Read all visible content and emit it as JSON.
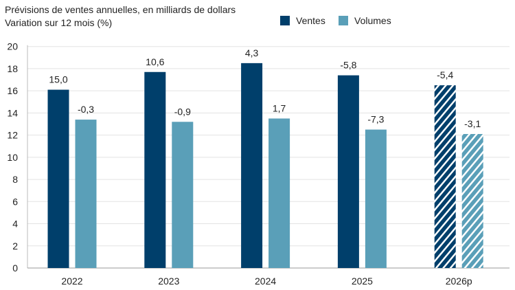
{
  "chart_data": {
    "type": "bar",
    "title": "Prévisions de ventes annuelles, en milliards de dollars",
    "subtitle": "Variation sur 12 mois (%)",
    "categories": [
      "2022",
      "2023",
      "2024",
      "2025",
      "2026p"
    ],
    "series": [
      {
        "name": "Ventes",
        "color": "#003f6b",
        "values": [
          16.1,
          17.7,
          18.5,
          17.4,
          16.5
        ],
        "labels": [
          "15,0",
          "10,6",
          "4,3",
          "-5,8",
          "-5,4"
        ]
      },
      {
        "name": "Volumes",
        "color": "#5a9fb8",
        "values": [
          13.4,
          13.2,
          13.5,
          12.5,
          12.1
        ],
        "labels": [
          "-0,3",
          "-0,9",
          "1,7",
          "-7,3",
          "-3,1"
        ]
      }
    ],
    "hatched_categories": [
      "2026p"
    ],
    "ylim": [
      0,
      20
    ],
    "yticks": [
      0,
      2,
      4,
      6,
      8,
      10,
      12,
      14,
      16,
      18,
      20
    ],
    "grid": true,
    "legend": "top-right"
  }
}
